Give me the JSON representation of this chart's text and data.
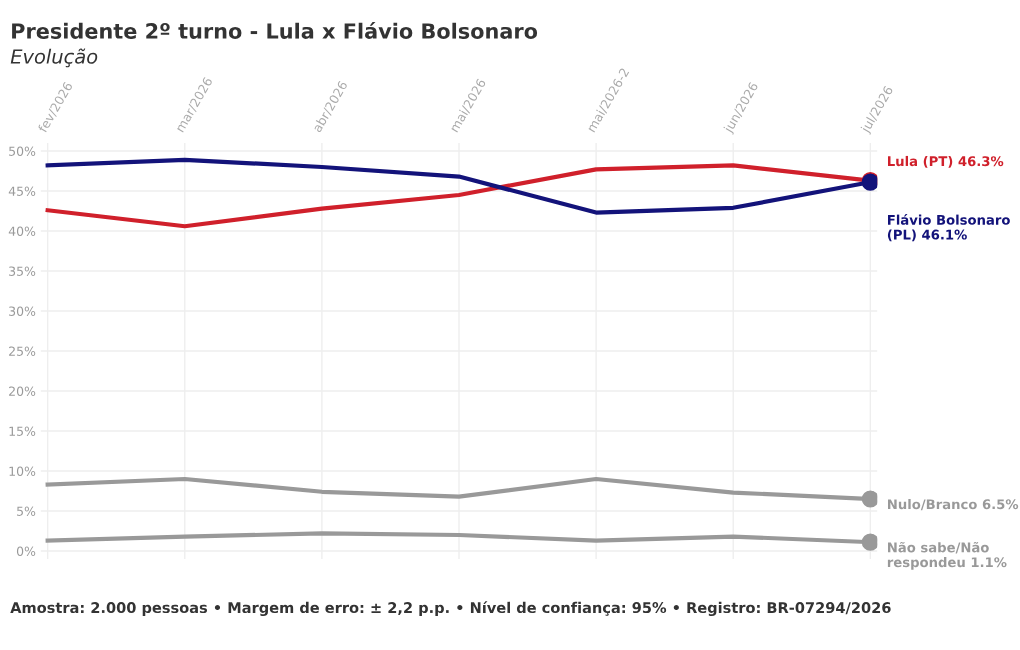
{
  "chart_data": {
    "type": "line",
    "title": "Presidente 2º turno - Lula x Flávio Bolsonaro",
    "subtitle": "Evolução",
    "categories": [
      "fev/2026",
      "mar/2026",
      "abr/2026",
      "mai/2026",
      "mai/2026-2",
      "jun/2026",
      "jul/2026"
    ],
    "series": [
      {
        "name": "Lula (PT)",
        "color": "#d0202b",
        "values": [
          42.6,
          40.6,
          42.8,
          44.5,
          47.7,
          48.2,
          46.3
        ],
        "value_labels": [
          null,
          null,
          null,
          null,
          null,
          null,
          "46.3%"
        ]
      },
      {
        "name": "Flávio Bolsonaro (PL)",
        "color": "#13137a",
        "values": [
          48.2,
          48.9,
          48.0,
          46.8,
          42.3,
          42.9,
          46.1
        ],
        "value_labels": [
          null,
          null,
          null,
          null,
          null,
          null,
          "46.1%"
        ]
      },
      {
        "name": "Nulo/Branco",
        "color": "#999999",
        "values": [
          8.3,
          9.0,
          7.4,
          6.8,
          9.0,
          7.3,
          6.5
        ],
        "value_labels": [
          null,
          null,
          null,
          null,
          null,
          null,
          "6.5%"
        ]
      },
      {
        "name": "Não sabe/Não respondeu",
        "color": "#999999",
        "values": [
          1.3,
          1.8,
          2.2,
          2.0,
          1.3,
          1.8,
          1.1
        ],
        "value_labels": [
          null,
          null,
          null,
          null,
          null,
          null,
          "1.1%"
        ]
      }
    ],
    "ylim": [
      -1,
      51
    ],
    "yticks": [
      {
        "value": 0,
        "label": "0%"
      },
      {
        "value": 5,
        "label": "5%"
      },
      {
        "value": 10,
        "label": "10%"
      },
      {
        "value": 15,
        "label": "15%"
      },
      {
        "value": 20,
        "label": "20%"
      },
      {
        "value": 25,
        "label": "25%"
      },
      {
        "value": 30,
        "label": "30%"
      },
      {
        "value": 35,
        "label": "35%"
      },
      {
        "value": 40,
        "label": "40%"
      },
      {
        "value": 45,
        "label": "45%"
      },
      {
        "value": 50,
        "label": "50%"
      }
    ],
    "grid": true,
    "legend": false,
    "marker": "none",
    "line_style": "solid",
    "annotations": [
      "Amostra: 2.000 pessoas • Margem de erro: ± 2,2 p.p. • Nível de confiança: 95% • Registro: BR-07294/2026"
    ]
  }
}
